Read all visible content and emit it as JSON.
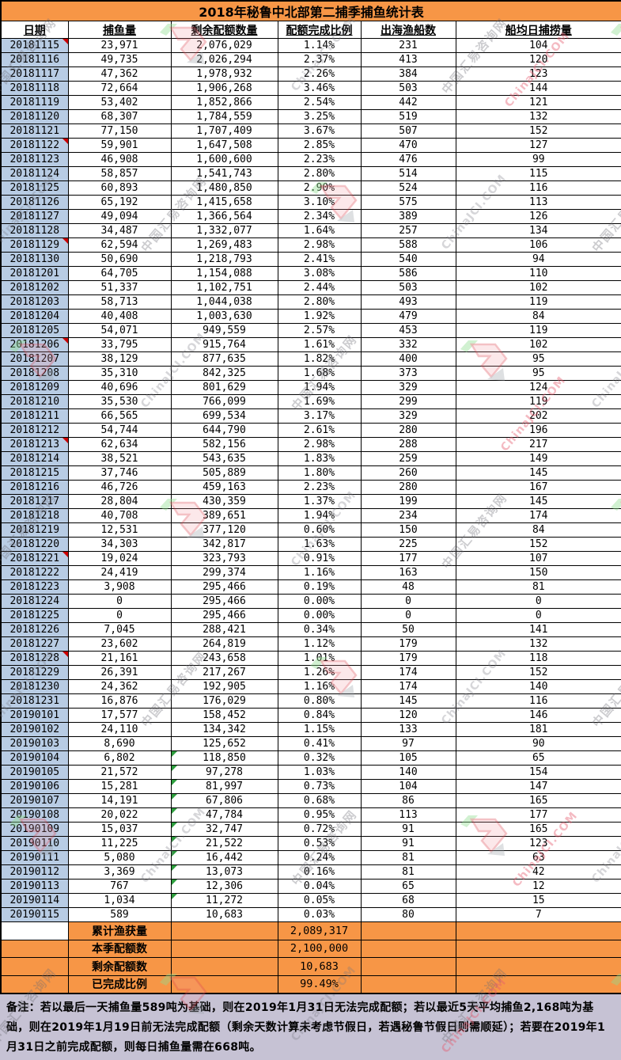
{
  "chart_data": {
    "type": "table",
    "title": "2018年秘鲁中北部第二捕季捕鱼统计表",
    "columns": [
      "日期",
      "捕鱼量",
      "剩余配额数量",
      "配额完成比例",
      "出海渔船数",
      "船均日捕捞量"
    ],
    "rows": [
      [
        "20181115",
        "23,971",
        "2,076,029",
        "1.14%",
        "231",
        "104"
      ],
      [
        "20181116",
        "49,735",
        "2,026,294",
        "2.37%",
        "413",
        "120"
      ],
      [
        "20181117",
        "47,362",
        "1,978,932",
        "2.26%",
        "384",
        "123"
      ],
      [
        "20181118",
        "72,664",
        "1,906,268",
        "3.46%",
        "503",
        "144"
      ],
      [
        "20181119",
        "53,402",
        "1,852,866",
        "2.54%",
        "442",
        "121"
      ],
      [
        "20181120",
        "68,307",
        "1,784,559",
        "3.25%",
        "519",
        "132"
      ],
      [
        "20181121",
        "77,150",
        "1,707,409",
        "3.67%",
        "507",
        "152"
      ],
      [
        "20181122",
        "59,901",
        "1,647,508",
        "2.85%",
        "470",
        "127"
      ],
      [
        "20181123",
        "46,908",
        "1,600,600",
        "2.23%",
        "476",
        "99"
      ],
      [
        "20181124",
        "58,857",
        "1,541,743",
        "2.80%",
        "514",
        "115"
      ],
      [
        "20181125",
        "60,893",
        "1,480,850",
        "2.90%",
        "524",
        "116"
      ],
      [
        "20181126",
        "65,192",
        "1,415,658",
        "3.10%",
        "575",
        "113"
      ],
      [
        "20181127",
        "49,094",
        "1,366,564",
        "2.34%",
        "389",
        "126"
      ],
      [
        "20181128",
        "34,487",
        "1,332,077",
        "1.64%",
        "257",
        "134"
      ],
      [
        "20181129",
        "62,594",
        "1,269,483",
        "2.98%",
        "588",
        "106"
      ],
      [
        "20181130",
        "50,690",
        "1,218,793",
        "2.41%",
        "540",
        "94"
      ],
      [
        "20181201",
        "64,705",
        "1,154,088",
        "3.08%",
        "586",
        "110"
      ],
      [
        "20181202",
        "51,337",
        "1,102,751",
        "2.44%",
        "503",
        "102"
      ],
      [
        "20181203",
        "58,713",
        "1,044,038",
        "2.80%",
        "493",
        "119"
      ],
      [
        "20181204",
        "40,408",
        "1,003,630",
        "1.92%",
        "479",
        "84"
      ],
      [
        "20181205",
        "54,071",
        "949,559",
        "2.57%",
        "453",
        "119"
      ],
      [
        "20181206",
        "33,795",
        "915,764",
        "1.61%",
        "332",
        "102"
      ],
      [
        "20181207",
        "38,129",
        "877,635",
        "1.82%",
        "400",
        "95"
      ],
      [
        "20181208",
        "35,310",
        "842,325",
        "1.68%",
        "373",
        "95"
      ],
      [
        "20181209",
        "40,696",
        "801,629",
        "1.94%",
        "329",
        "124"
      ],
      [
        "20181210",
        "35,530",
        "766,099",
        "1.69%",
        "299",
        "119"
      ],
      [
        "20181211",
        "66,565",
        "699,534",
        "3.17%",
        "329",
        "202"
      ],
      [
        "20181212",
        "54,744",
        "644,790",
        "2.61%",
        "280",
        "196"
      ],
      [
        "20181213",
        "62,634",
        "582,156",
        "2.98%",
        "288",
        "217"
      ],
      [
        "20181214",
        "38,521",
        "543,635",
        "1.83%",
        "259",
        "149"
      ],
      [
        "20181215",
        "37,746",
        "505,889",
        "1.80%",
        "260",
        "145"
      ],
      [
        "20181216",
        "46,726",
        "459,163",
        "2.23%",
        "280",
        "167"
      ],
      [
        "20181217",
        "28,804",
        "430,359",
        "1.37%",
        "199",
        "145"
      ],
      [
        "20181218",
        "40,708",
        "389,651",
        "1.94%",
        "234",
        "174"
      ],
      [
        "20181219",
        "12,531",
        "377,120",
        "0.60%",
        "150",
        "84"
      ],
      [
        "20181220",
        "34,303",
        "342,817",
        "1.63%",
        "225",
        "152"
      ],
      [
        "20181221",
        "19,024",
        "323,793",
        "0.91%",
        "177",
        "107"
      ],
      [
        "20181222",
        "24,419",
        "299,374",
        "1.16%",
        "163",
        "150"
      ],
      [
        "20181223",
        "3,908",
        "295,466",
        "0.19%",
        "48",
        "81"
      ],
      [
        "20181224",
        "0",
        "295,466",
        "0.00%",
        "0",
        "0"
      ],
      [
        "20181225",
        "0",
        "295,466",
        "0.00%",
        "0",
        "0"
      ],
      [
        "20181226",
        "7,045",
        "288,421",
        "0.34%",
        "50",
        "141"
      ],
      [
        "20181227",
        "23,602",
        "264,819",
        "1.12%",
        "179",
        "132"
      ],
      [
        "20181228",
        "21,161",
        "243,658",
        "1.01%",
        "179",
        "118"
      ],
      [
        "20181229",
        "26,391",
        "217,267",
        "1.26%",
        "174",
        "152"
      ],
      [
        "20181230",
        "24,362",
        "192,905",
        "1.16%",
        "174",
        "140"
      ],
      [
        "20181231",
        "16,876",
        "176,029",
        "0.80%",
        "145",
        "116"
      ],
      [
        "20190101",
        "17,577",
        "158,452",
        "0.84%",
        "120",
        "146"
      ],
      [
        "20190102",
        "24,110",
        "134,342",
        "1.15%",
        "133",
        "181"
      ],
      [
        "20190103",
        "8,690",
        "125,652",
        "0.41%",
        "97",
        "90"
      ],
      [
        "20190104",
        "6,802",
        "118,850",
        "0.32%",
        "105",
        "65"
      ],
      [
        "20190105",
        "21,572",
        "97,278",
        "1.03%",
        "140",
        "154"
      ],
      [
        "20190106",
        "15,281",
        "81,997",
        "0.73%",
        "104",
        "147"
      ],
      [
        "20190107",
        "14,191",
        "67,806",
        "0.68%",
        "86",
        "165"
      ],
      [
        "20190108",
        "20,022",
        "47,784",
        "0.95%",
        "113",
        "177"
      ],
      [
        "20190109",
        "15,037",
        "32,747",
        "0.72%",
        "91",
        "165"
      ],
      [
        "20190110",
        "11,225",
        "21,522",
        "0.53%",
        "91",
        "123"
      ],
      [
        "20190111",
        "5,080",
        "16,442",
        "0.24%",
        "81",
        "63"
      ],
      [
        "20190112",
        "3,369",
        "13,073",
        "0.16%",
        "81",
        "42"
      ],
      [
        "20190113",
        "767",
        "12,306",
        "0.04%",
        "65",
        "12"
      ],
      [
        "20190114",
        "1,034",
        "11,272",
        "0.05%",
        "68",
        "15"
      ],
      [
        "20190115",
        "589",
        "10,683",
        "0.03%",
        "80",
        "7"
      ]
    ],
    "comment_dates": [
      "20181115",
      "20181122",
      "20181129",
      "20181206",
      "20181213",
      "20181221",
      "20181228"
    ],
    "green_flag_dates": [
      "20190104",
      "20190105",
      "20190106",
      "20190107",
      "20190108",
      "20190109",
      "20190110",
      "20190111",
      "20190112",
      "20190113",
      "20190114"
    ],
    "summary": [
      {
        "label": "累计渔获量",
        "value": "2,089,317"
      },
      {
        "label": "本季配额数",
        "value": "2,100,000"
      },
      {
        "label": "剩余配额数",
        "value": "10,683"
      },
      {
        "label": "已完成比例",
        "value": "99.49%"
      }
    ],
    "note": "备注：若以最后一天捕鱼量589吨为基础，则在2019年1月31日无法完成配额；若以最近5天平均捕鱼2,168吨为基础，则在2019年1月19日前无法完成配额（剩余天数计算未考虑节假日，若遇秘鲁节假日则需顺延）；若要在2019年1月31日之前完成配额，则每日捕鱼量需在668吨。"
  },
  "watermark": {
    "text_cn": "中国汇易咨询网",
    "text_en": "ChinaJCI.COM"
  },
  "colors": {
    "orange": "#F79646",
    "date_blue": "#B8CCE4",
    "note_lavender": "#C6C2D4",
    "comment_red": "#cc0000",
    "flag_green": "#2e9e3e"
  }
}
